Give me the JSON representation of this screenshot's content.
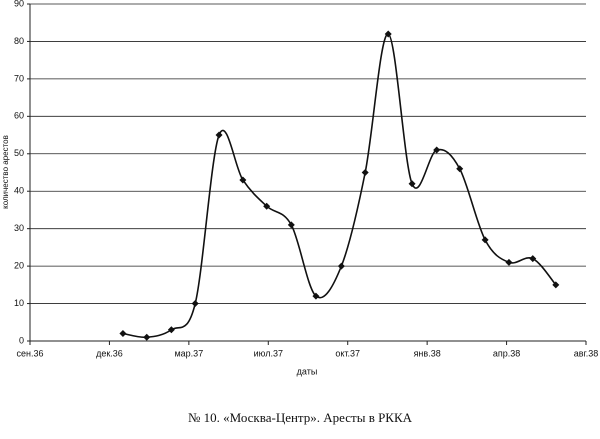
{
  "chart_data": {
    "type": "line",
    "caption": "№ 10. «Москва-Центр». Аресты в РККА",
    "xlabel": "даты",
    "ylabel": "количество арестов",
    "x": [
      1.17,
      1.47,
      1.78,
      2.08,
      2.38,
      2.68,
      2.98,
      3.29,
      3.6,
      3.92,
      4.22,
      4.51,
      4.81,
      5.12,
      5.41,
      5.73,
      6.03,
      6.33,
      6.62
    ],
    "series": [
      {
        "name": "аресты",
        "color": "#111111",
        "values": [
          2,
          1,
          3,
          10,
          55,
          43,
          36,
          31,
          12,
          20,
          45,
          82,
          42,
          51,
          46,
          27,
          21,
          22,
          15
        ]
      }
    ],
    "xlim": [
      0,
      7
    ],
    "xticks": [
      {
        "value": 0,
        "label": "сен.36"
      },
      {
        "value": 1,
        "label": "дек.36"
      },
      {
        "value": 2,
        "label": "мар.37"
      },
      {
        "value": 3,
        "label": "июл.37"
      },
      {
        "value": 4,
        "label": "окт.37"
      },
      {
        "value": 5,
        "label": "янв.38"
      },
      {
        "value": 6,
        "label": "апр.38"
      },
      {
        "value": 7,
        "label": "авг.38"
      }
    ],
    "ylim": [
      0,
      90
    ],
    "yticks": [
      0,
      10,
      20,
      30,
      40,
      50,
      60,
      70,
      80,
      90
    ],
    "grid": true,
    "smooth": true
  }
}
